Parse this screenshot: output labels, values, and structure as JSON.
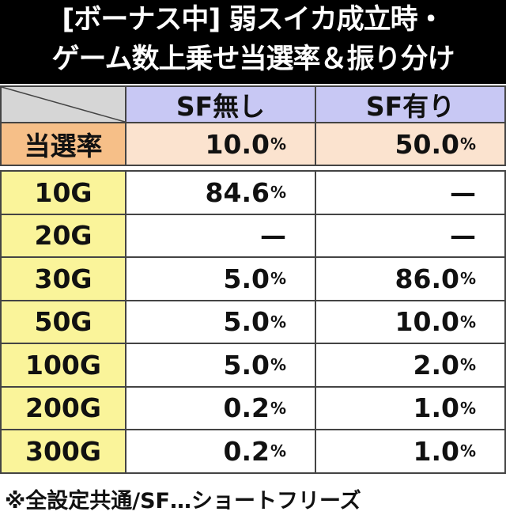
{
  "title": {
    "lines": [
      "[ボーナス中] 弱スイカ成立時・",
      "ゲーム数上乗せ当選率＆振り分け"
    ]
  },
  "table": {
    "columns": [
      "SF無し",
      "SF有り"
    ],
    "rate_row": {
      "label": "当選率",
      "cells": [
        "10.0%",
        "50.0%"
      ]
    },
    "rows": [
      {
        "label": "10G",
        "cells": [
          "84.6%",
          "—"
        ]
      },
      {
        "label": "20G",
        "cells": [
          "—",
          "—"
        ]
      },
      {
        "label": "30G",
        "cells": [
          "5.0%",
          "86.0%"
        ]
      },
      {
        "label": "50G",
        "cells": [
          "5.0%",
          "10.0%"
        ]
      },
      {
        "label": "100G",
        "cells": [
          "5.0%",
          "2.0%"
        ]
      },
      {
        "label": "200G",
        "cells": [
          "0.2%",
          "1.0%"
        ]
      },
      {
        "label": "300G",
        "cells": [
          "0.2%",
          "1.0%"
        ]
      }
    ]
  },
  "footnote": "※全設定共通/SF…ショートフリーズ"
}
